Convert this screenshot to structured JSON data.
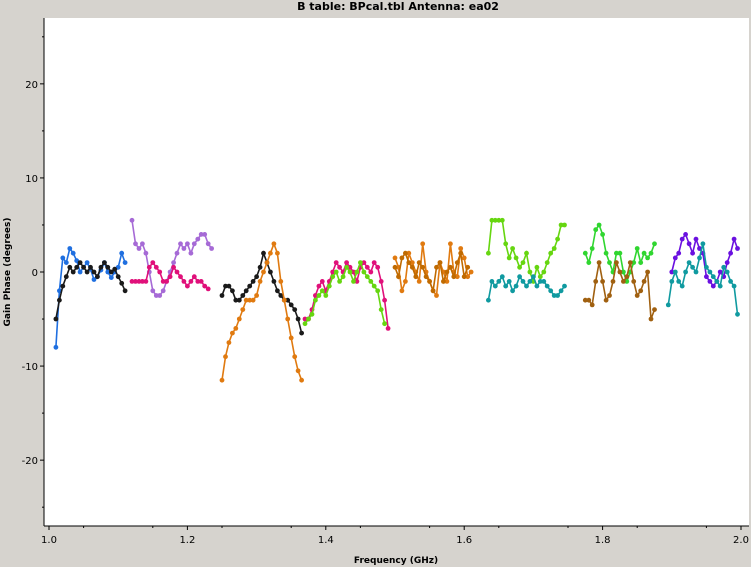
{
  "chart_data": {
    "type": "scatter",
    "title": "B table: BPcal.tbl   Antenna: ea02",
    "xlabel": "Frequency (GHz)",
    "ylabel": "Gain Phase (degrees)",
    "xlim": [
      1.0,
      2.0
    ],
    "ylim": [
      -27,
      27
    ],
    "x_ticks": [
      1.0,
      1.2,
      1.4,
      1.6,
      1.8,
      2.0
    ],
    "x_tick_labels": [
      "1.0",
      "1.2",
      "1.4",
      "1.6",
      "1.8",
      "2.0"
    ],
    "y_ticks": [
      -20,
      -10,
      0,
      10,
      20
    ],
    "y_tick_labels": [
      "-20",
      "-10",
      "0",
      "10",
      "20"
    ],
    "grid": false,
    "legend": "none",
    "series": [
      {
        "color": "#1f6fe0",
        "x": [
          1.01,
          1.015,
          1.02,
          1.025,
          1.03,
          1.035,
          1.04,
          1.045,
          1.05,
          1.055,
          1.06,
          1.065,
          1.07,
          1.075,
          1.08,
          1.085,
          1.09,
          1.095,
          1.1,
          1.105,
          1.11
        ],
        "y": [
          -8,
          -2,
          1.5,
          1,
          2.5,
          2,
          1.2,
          0,
          0.5,
          1,
          0.3,
          -0.8,
          -0.5,
          0.2,
          1,
          0,
          -0.6,
          0,
          0.5,
          2,
          1
        ]
      },
      {
        "color": "#1a1a1a",
        "x": [
          1.01,
          1.015,
          1.02,
          1.025,
          1.03,
          1.035,
          1.04,
          1.045,
          1.05,
          1.055,
          1.06,
          1.065,
          1.07,
          1.075,
          1.08,
          1.085,
          1.09,
          1.095,
          1.1,
          1.105,
          1.11
        ],
        "y": [
          -5,
          -3,
          -1.5,
          -0.5,
          0.5,
          0,
          0.5,
          1,
          0.5,
          0,
          0.5,
          0,
          -0.5,
          0.5,
          1,
          0.5,
          0,
          0.3,
          -0.5,
          -1.2,
          -2
        ]
      },
      {
        "color": "#a66ad6",
        "x": [
          1.12,
          1.125,
          1.13,
          1.135,
          1.14,
          1.145,
          1.15,
          1.155,
          1.16,
          1.165,
          1.17,
          1.175,
          1.18,
          1.185,
          1.19,
          1.195,
          1.2,
          1.205,
          1.21,
          1.215,
          1.22,
          1.225,
          1.23,
          1.235
        ],
        "y": [
          5.5,
          3,
          2.5,
          3,
          2,
          0,
          -2,
          -2.5,
          -2.5,
          -2,
          -1,
          0,
          1,
          2,
          3,
          2.5,
          3,
          2,
          3,
          3.5,
          4,
          4,
          3,
          2.5
        ]
      },
      {
        "color": "#e0107a",
        "x": [
          1.12,
          1.125,
          1.13,
          1.135,
          1.14,
          1.145,
          1.15,
          1.155,
          1.16,
          1.165,
          1.17,
          1.175,
          1.18,
          1.185,
          1.19,
          1.195,
          1.2,
          1.205,
          1.21,
          1.215,
          1.22,
          1.225,
          1.23
        ],
        "y": [
          -1,
          -1,
          -1,
          -1,
          -1,
          0.5,
          1,
          0.5,
          0,
          -1,
          -1,
          -0.5,
          0.5,
          0,
          -0.5,
          -1,
          -1.5,
          -1,
          -0.5,
          -1,
          -1,
          -1.5,
          -1.8
        ]
      },
      {
        "color": "#1a1a1a",
        "x": [
          1.25,
          1.255,
          1.26,
          1.265,
          1.27,
          1.275,
          1.28,
          1.285,
          1.29,
          1.295,
          1.3,
          1.305,
          1.31,
          1.315,
          1.32,
          1.325,
          1.33,
          1.335,
          1.34,
          1.345,
          1.35,
          1.355,
          1.36,
          1.365
        ],
        "y": [
          -2.5,
          -1.5,
          -1.5,
          -2,
          -3,
          -3,
          -2.5,
          -2,
          -1.5,
          -1,
          -0.5,
          0.5,
          2,
          1,
          0,
          -1,
          -2,
          -2.5,
          -3,
          -3,
          -3.5,
          -4,
          -5,
          -6.5
        ]
      },
      {
        "color": "#e07a10",
        "x": [
          1.25,
          1.255,
          1.26,
          1.265,
          1.27,
          1.275,
          1.28,
          1.285,
          1.29,
          1.295,
          1.3,
          1.305,
          1.31,
          1.315,
          1.32,
          1.325,
          1.33,
          1.335,
          1.34,
          1.345,
          1.35,
          1.355,
          1.36,
          1.365
        ],
        "y": [
          -11.5,
          -9,
          -7.5,
          -6.5,
          -6,
          -5,
          -4,
          -3,
          -3,
          -3,
          -2.5,
          -1,
          0,
          1,
          2,
          3,
          2,
          -1,
          -3,
          -5,
          -7,
          -9,
          -10.5,
          -11.5
        ]
      },
      {
        "color": "#e0107a",
        "x": [
          1.37,
          1.375,
          1.38,
          1.385,
          1.39,
          1.395,
          1.4,
          1.405,
          1.41,
          1.415,
          1.42,
          1.425,
          1.43,
          1.435,
          1.44,
          1.445,
          1.45,
          1.455,
          1.46,
          1.465,
          1.47,
          1.475,
          1.48,
          1.485,
          1.49
        ],
        "y": [
          -5,
          -5,
          -4,
          -2.5,
          -1.5,
          -1,
          -2,
          -1,
          0,
          1,
          0.5,
          0,
          1,
          0.5,
          0,
          -1,
          0.5,
          1,
          0.5,
          0,
          1,
          0.5,
          -1,
          -3,
          -6
        ]
      },
      {
        "color": "#66d610",
        "x": [
          1.37,
          1.375,
          1.38,
          1.385,
          1.39,
          1.395,
          1.4,
          1.405,
          1.41,
          1.415,
          1.42,
          1.425,
          1.43,
          1.435,
          1.44,
          1.445,
          1.45,
          1.455,
          1.46,
          1.465,
          1.47,
          1.475,
          1.48,
          1.485
        ],
        "y": [
          -5.5,
          -5,
          -4.5,
          -3,
          -2.5,
          -2,
          -2.5,
          -1.5,
          -0.5,
          0,
          -1,
          -0.5,
          0.5,
          0,
          -1,
          0,
          1,
          0,
          -0.5,
          -1,
          -1.5,
          -2,
          -4,
          -5.5
        ]
      },
      {
        "color": "#e07a10",
        "x": [
          1.5,
          1.505,
          1.51,
          1.515,
          1.52,
          1.525,
          1.53,
          1.535,
          1.54,
          1.545,
          1.55,
          1.555,
          1.56,
          1.565,
          1.57,
          1.575,
          1.58,
          1.585,
          1.59,
          1.595,
          1.6,
          1.605,
          1.61
        ],
        "y": [
          1.5,
          0.5,
          -2,
          -1,
          2,
          1,
          0,
          -1,
          3,
          0,
          -1,
          -2,
          -2.5,
          1,
          0,
          -1,
          3,
          0,
          -0.5,
          2.5,
          1.5,
          -0.5,
          0
        ]
      },
      {
        "color": "#c06a00",
        "x": [
          1.5,
          1.505,
          1.51,
          1.515,
          1.52,
          1.525,
          1.53,
          1.535,
          1.54,
          1.545,
          1.55,
          1.555,
          1.56,
          1.565,
          1.57,
          1.575,
          1.58,
          1.585,
          1.59,
          1.595,
          1.6,
          1.605
        ],
        "y": [
          0.5,
          -0.5,
          1.5,
          2,
          1,
          0.5,
          -0.5,
          1,
          0.5,
          -0.5,
          -1,
          -2,
          0.5,
          1,
          -1,
          0,
          0.5,
          -0.5,
          1,
          2,
          -0.5,
          0.5
        ]
      },
      {
        "color": "#66d610",
        "x": [
          1.635,
          1.64,
          1.645,
          1.65,
          1.655,
          1.66,
          1.665,
          1.67,
          1.675,
          1.68,
          1.685,
          1.69,
          1.695,
          1.7,
          1.705,
          1.71,
          1.715,
          1.72,
          1.725,
          1.73,
          1.735,
          1.74,
          1.745
        ],
        "y": [
          2,
          5.5,
          5.5,
          5.5,
          5.5,
          3,
          1.5,
          2.5,
          1.5,
          0.5,
          1,
          2,
          0,
          -1,
          0.5,
          -0.5,
          0,
          1,
          2,
          2.5,
          3.5,
          5,
          5
        ]
      },
      {
        "color": "#109aa0",
        "x": [
          1.635,
          1.64,
          1.645,
          1.65,
          1.655,
          1.66,
          1.665,
          1.67,
          1.675,
          1.68,
          1.685,
          1.69,
          1.695,
          1.7,
          1.705,
          1.71,
          1.715,
          1.72,
          1.725,
          1.73,
          1.735,
          1.74,
          1.745
        ],
        "y": [
          -3,
          -1,
          -1.5,
          -1,
          -0.5,
          -1.5,
          -1,
          -2,
          -1.5,
          -0.5,
          -1,
          -1.5,
          -1,
          -0.5,
          -1.5,
          -1,
          -1,
          -1.5,
          -2,
          -2.5,
          -2.5,
          -2,
          -1.5
        ]
      },
      {
        "color": "#30d630",
        "x": [
          1.775,
          1.78,
          1.785,
          1.79,
          1.795,
          1.8,
          1.805,
          1.81,
          1.815,
          1.82,
          1.825,
          1.83,
          1.835,
          1.84,
          1.845,
          1.85,
          1.855,
          1.86,
          1.865,
          1.87,
          1.875
        ],
        "y": [
          2,
          1,
          2.5,
          4.5,
          5,
          4,
          2,
          1,
          0,
          2,
          2,
          0,
          -1,
          0,
          1,
          2.5,
          1,
          2,
          1.5,
          2,
          3
        ]
      },
      {
        "color": "#a06010",
        "x": [
          1.775,
          1.78,
          1.785,
          1.79,
          1.795,
          1.8,
          1.805,
          1.81,
          1.815,
          1.82,
          1.825,
          1.83,
          1.835,
          1.84,
          1.845,
          1.85,
          1.855,
          1.86,
          1.865,
          1.87,
          1.875
        ],
        "y": [
          -3,
          -3,
          -3.5,
          -1,
          1,
          -1,
          -3,
          -2.5,
          -1,
          1,
          0,
          -1,
          -0.5,
          1,
          -1,
          -2.5,
          -2,
          -1,
          0,
          -5,
          -4
        ]
      },
      {
        "color": "#6a10e0",
        "x": [
          1.9,
          1.905,
          1.91,
          1.915,
          1.92,
          1.925,
          1.93,
          1.935,
          1.94,
          1.945,
          1.95,
          1.955,
          1.96,
          1.965,
          1.97,
          1.975,
          1.98,
          1.985,
          1.99,
          1.995
        ],
        "y": [
          0,
          1.5,
          2,
          3.5,
          4,
          3,
          2,
          3.5,
          2.5,
          2,
          -0.5,
          -1,
          -1.5,
          -1,
          0,
          -0.5,
          1,
          2,
          3.5,
          2.5
        ]
      },
      {
        "color": "#109aa0",
        "x": [
          1.895,
          1.9,
          1.905,
          1.91,
          1.915,
          1.92,
          1.925,
          1.93,
          1.935,
          1.94,
          1.945,
          1.95,
          1.955,
          1.96,
          1.965,
          1.97,
          1.975,
          1.98,
          1.985,
          1.99,
          1.995
        ],
        "y": [
          -3.5,
          -1,
          0,
          -1,
          -1.5,
          0,
          1,
          0.5,
          0,
          1.5,
          3,
          0.5,
          0,
          -0.5,
          -1,
          -1.5,
          0.5,
          0,
          -1,
          -1.5,
          -4.5
        ]
      }
    ]
  }
}
